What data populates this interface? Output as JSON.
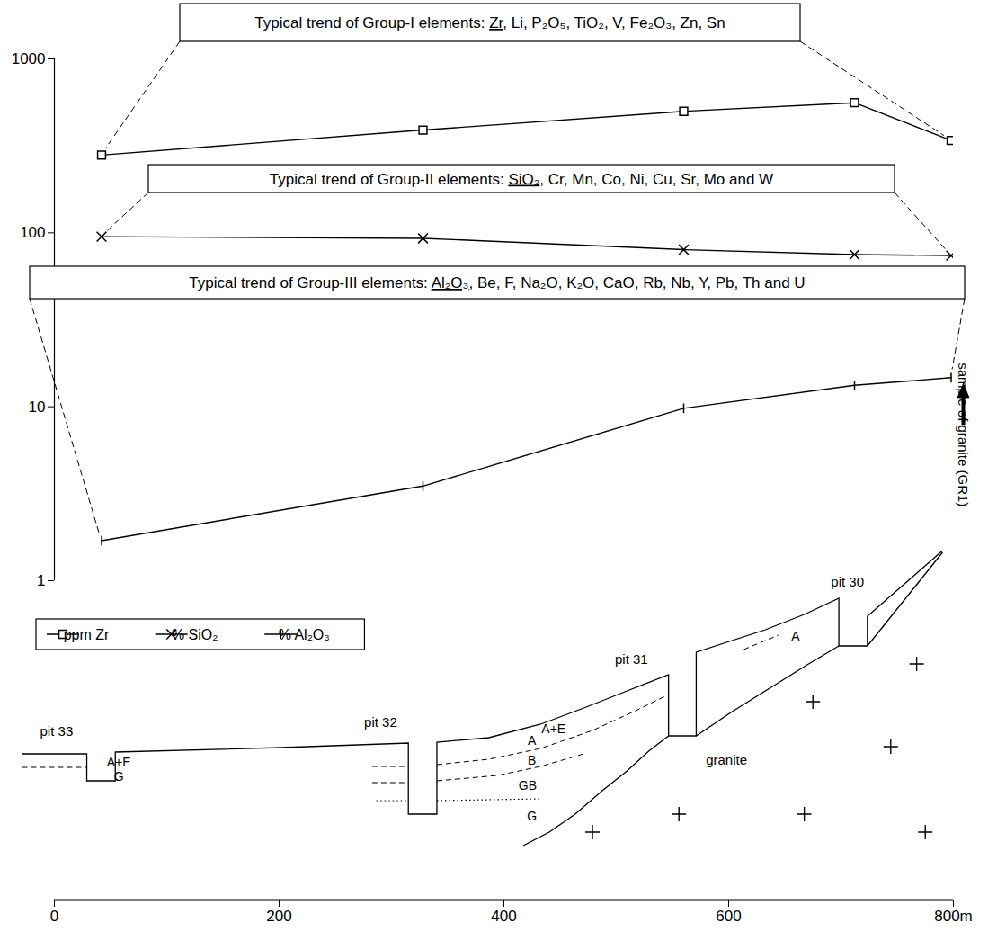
{
  "chart_data": {
    "type": "line",
    "log": "y",
    "xlim": [
      0,
      800
    ],
    "xticks": [
      0,
      200,
      400,
      600,
      {
        "value": 800,
        "label": "800m"
      }
    ],
    "ylim": [
      1,
      1000
    ],
    "yticks": [
      1,
      10,
      100,
      1000
    ],
    "legend": "left",
    "x": [
      42,
      328,
      560,
      712,
      798
    ],
    "series": [
      {
        "name": "ppm Zr",
        "color": "#000000",
        "marker": "square",
        "values": [
          280,
          390,
          500,
          560,
          340
        ]
      },
      {
        "name": "% SiO₂",
        "color": "#000000",
        "marker": "times",
        "values": [
          95,
          93,
          80,
          75,
          74
        ]
      },
      {
        "name": "% Al₂O₃",
        "color": "#000000",
        "marker": "tick",
        "values": [
          1.7,
          3.5,
          9.8,
          13.3,
          14.7
        ]
      }
    ],
    "annotations": [
      {
        "text": "Typical trend of Group-I elements: Zr, Li, P₂O₅, TiO₂, V, Fe₂O₃, Zn, Sn",
        "underlined": "Zr"
      },
      {
        "text": "Typical trend of Group-II elements: SiO₂, Cr, Mn, Co, Ni, Cu, Sr, Mo and W",
        "underlined": "SiO₂"
      },
      {
        "text": "Typical trend of Group-III elements: Al₂O₃, Be, F, Na₂O, K₂O, CaO, Rb, Nb, Y, Pb, Th and U",
        "underlined": "Al₂O₃"
      }
    ],
    "sample_label": "sample of granite (GR1)",
    "cross_section": {
      "pits": [
        {
          "label": "pit 33",
          "horizons": [
            "A+E",
            "G"
          ]
        },
        {
          "label": "pit 32",
          "horizons": [
            "A",
            "B",
            "GB",
            "G"
          ]
        },
        {
          "label": "pit 31",
          "horizons": [
            "A+E"
          ]
        },
        {
          "label": "pit 30",
          "horizons": [
            "A"
          ]
        }
      ],
      "rock_label": "granite"
    }
  }
}
